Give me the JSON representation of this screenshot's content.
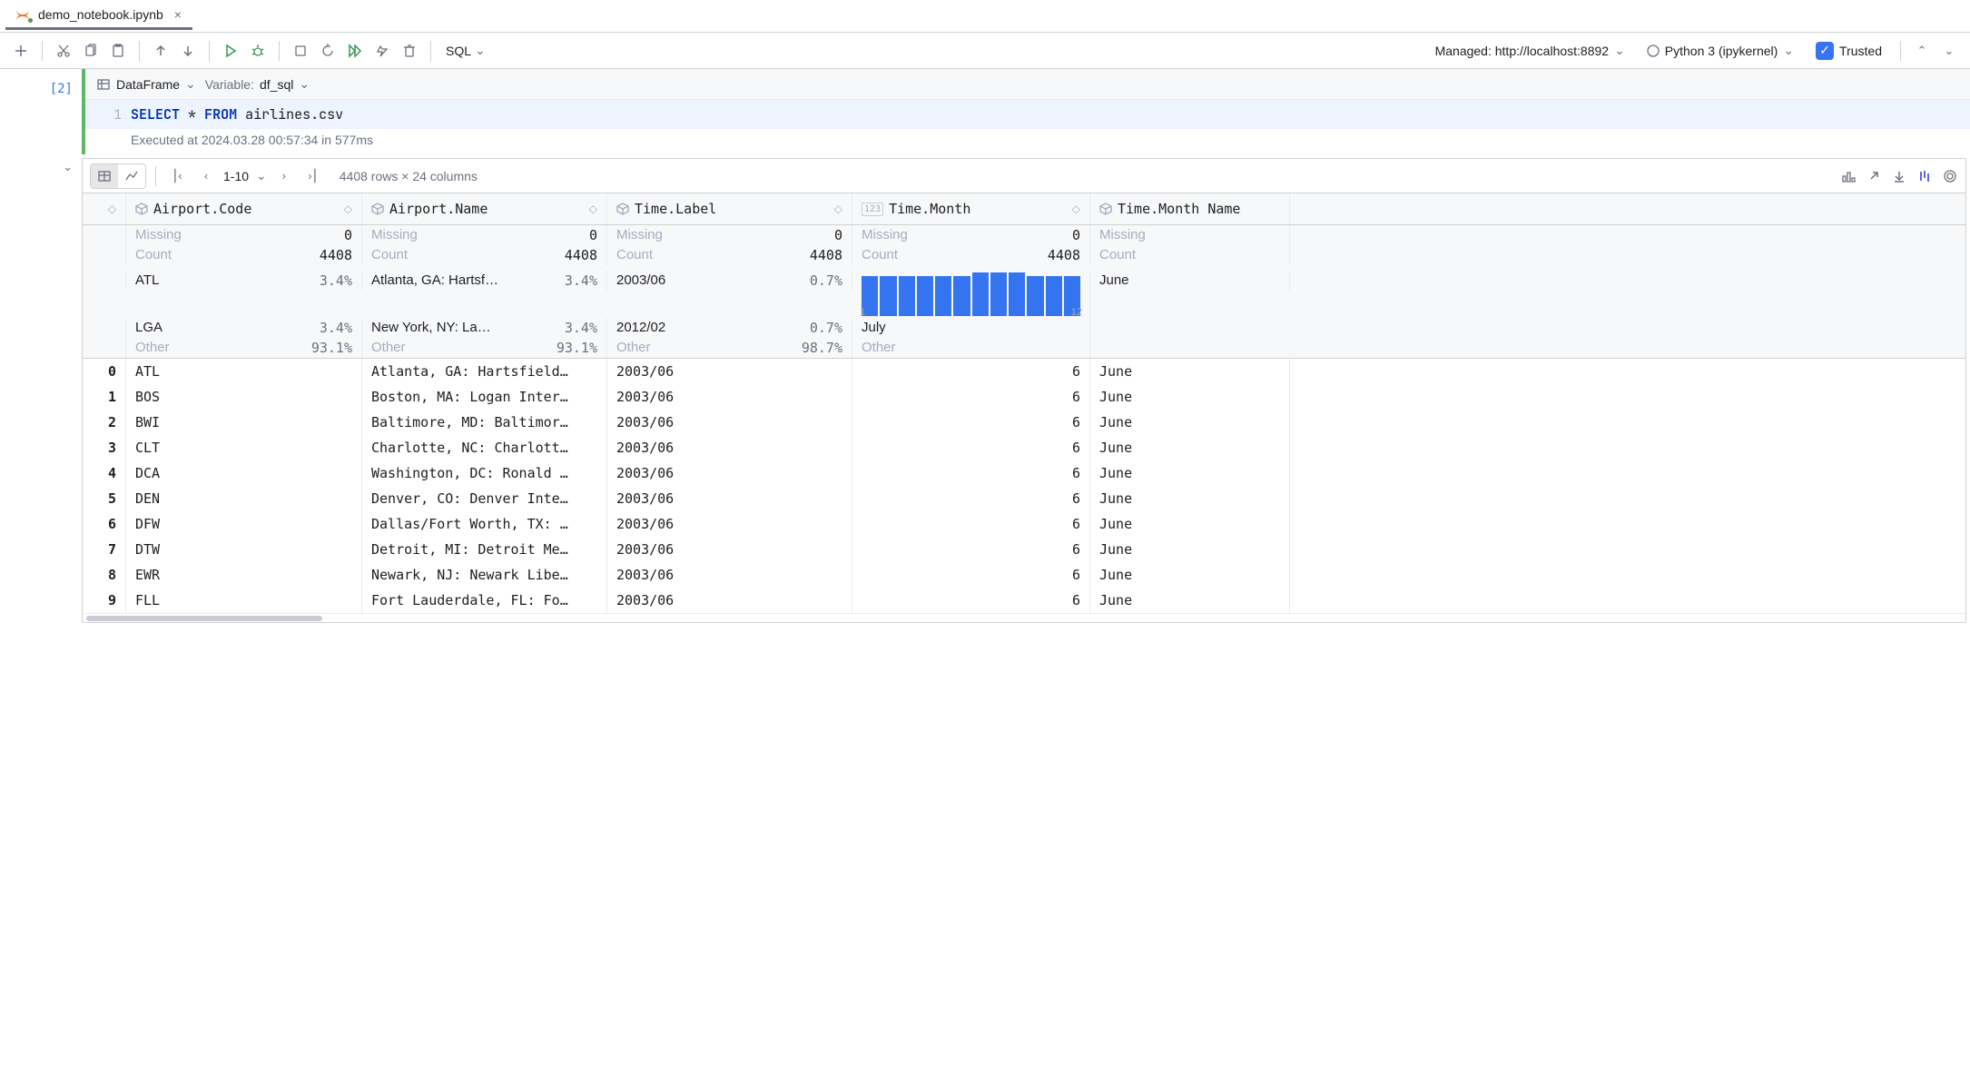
{
  "tab": {
    "title": "demo_notebook.ipynb"
  },
  "toolbar": {
    "lang": "SQL",
    "managed": "Managed: http://localhost:8892",
    "kernel": "Python 3 (ipykernel)",
    "trusted": "Trusted"
  },
  "cell": {
    "prompt": "[2]",
    "type_label": "DataFrame",
    "var_label": "Variable:",
    "var_name": "df_sql",
    "lineno": "1",
    "code_kw1": "SELECT",
    "code_star": "*",
    "code_kw2": "FROM",
    "code_ident": "airlines.csv",
    "exec_meta": "Executed at 2024.03.28 00:57:34 in 577ms"
  },
  "output": {
    "pager_range": "1-10",
    "summary": "4408 rows × 24 columns",
    "columns": [
      {
        "name": "Airport.Code",
        "type": "cube"
      },
      {
        "name": "Airport.Name",
        "type": "cube"
      },
      {
        "name": "Time.Label",
        "type": "cube"
      },
      {
        "name": "Time.Month",
        "type": "num"
      },
      {
        "name": "Time.Month Name",
        "type": "cube"
      }
    ],
    "stats": {
      "missing_label": "Missing",
      "count_label": "Count",
      "missing": [
        "0",
        "0",
        "0",
        "0",
        ""
      ],
      "count": [
        "4408",
        "4408",
        "4408",
        "4408",
        ""
      ],
      "top1_label": [
        "ATL",
        "Atlanta, GA: Hartsf…",
        "2003/06",
        "",
        "June"
      ],
      "top1_val": [
        "3.4%",
        "3.4%",
        "0.7%",
        "",
        ""
      ],
      "top2_label": [
        "LGA",
        "New York, NY: La…",
        "2012/02",
        "",
        "July"
      ],
      "top2_val": [
        "3.4%",
        "3.4%",
        "0.7%",
        "",
        ""
      ],
      "other_label": "Other",
      "other_val": [
        "93.1%",
        "93.1%",
        "98.7%",
        "",
        ""
      ],
      "histogram": {
        "heights": [
          0.92,
          0.92,
          0.92,
          0.92,
          0.92,
          0.92,
          1.0,
          1.0,
          1.0,
          0.92,
          0.92,
          0.92
        ],
        "color": "#3574f0",
        "axis_min": "1",
        "axis_max": "12"
      }
    },
    "rows": [
      {
        "idx": "0",
        "code": "ATL",
        "name": "Atlanta, GA: Hartsfield…",
        "label": "2003/06",
        "month": "6",
        "mname": "June"
      },
      {
        "idx": "1",
        "code": "BOS",
        "name": "Boston, MA: Logan Inter…",
        "label": "2003/06",
        "month": "6",
        "mname": "June"
      },
      {
        "idx": "2",
        "code": "BWI",
        "name": "Baltimore, MD: Baltimor…",
        "label": "2003/06",
        "month": "6",
        "mname": "June"
      },
      {
        "idx": "3",
        "code": "CLT",
        "name": "Charlotte, NC: Charlott…",
        "label": "2003/06",
        "month": "6",
        "mname": "June"
      },
      {
        "idx": "4",
        "code": "DCA",
        "name": "Washington, DC: Ronald …",
        "label": "2003/06",
        "month": "6",
        "mname": "June"
      },
      {
        "idx": "5",
        "code": "DEN",
        "name": "Denver, CO: Denver Inte…",
        "label": "2003/06",
        "month": "6",
        "mname": "June"
      },
      {
        "idx": "6",
        "code": "DFW",
        "name": "Dallas/Fort Worth, TX: …",
        "label": "2003/06",
        "month": "6",
        "mname": "June"
      },
      {
        "idx": "7",
        "code": "DTW",
        "name": "Detroit, MI: Detroit Me…",
        "label": "2003/06",
        "month": "6",
        "mname": "June"
      },
      {
        "idx": "8",
        "code": "EWR",
        "name": "Newark, NJ: Newark Libe…",
        "label": "2003/06",
        "month": "6",
        "mname": "June"
      },
      {
        "idx": "9",
        "code": "FLL",
        "name": "Fort Lauderdale, FL: Fo…",
        "label": "2003/06",
        "month": "6",
        "mname": "June"
      }
    ]
  }
}
